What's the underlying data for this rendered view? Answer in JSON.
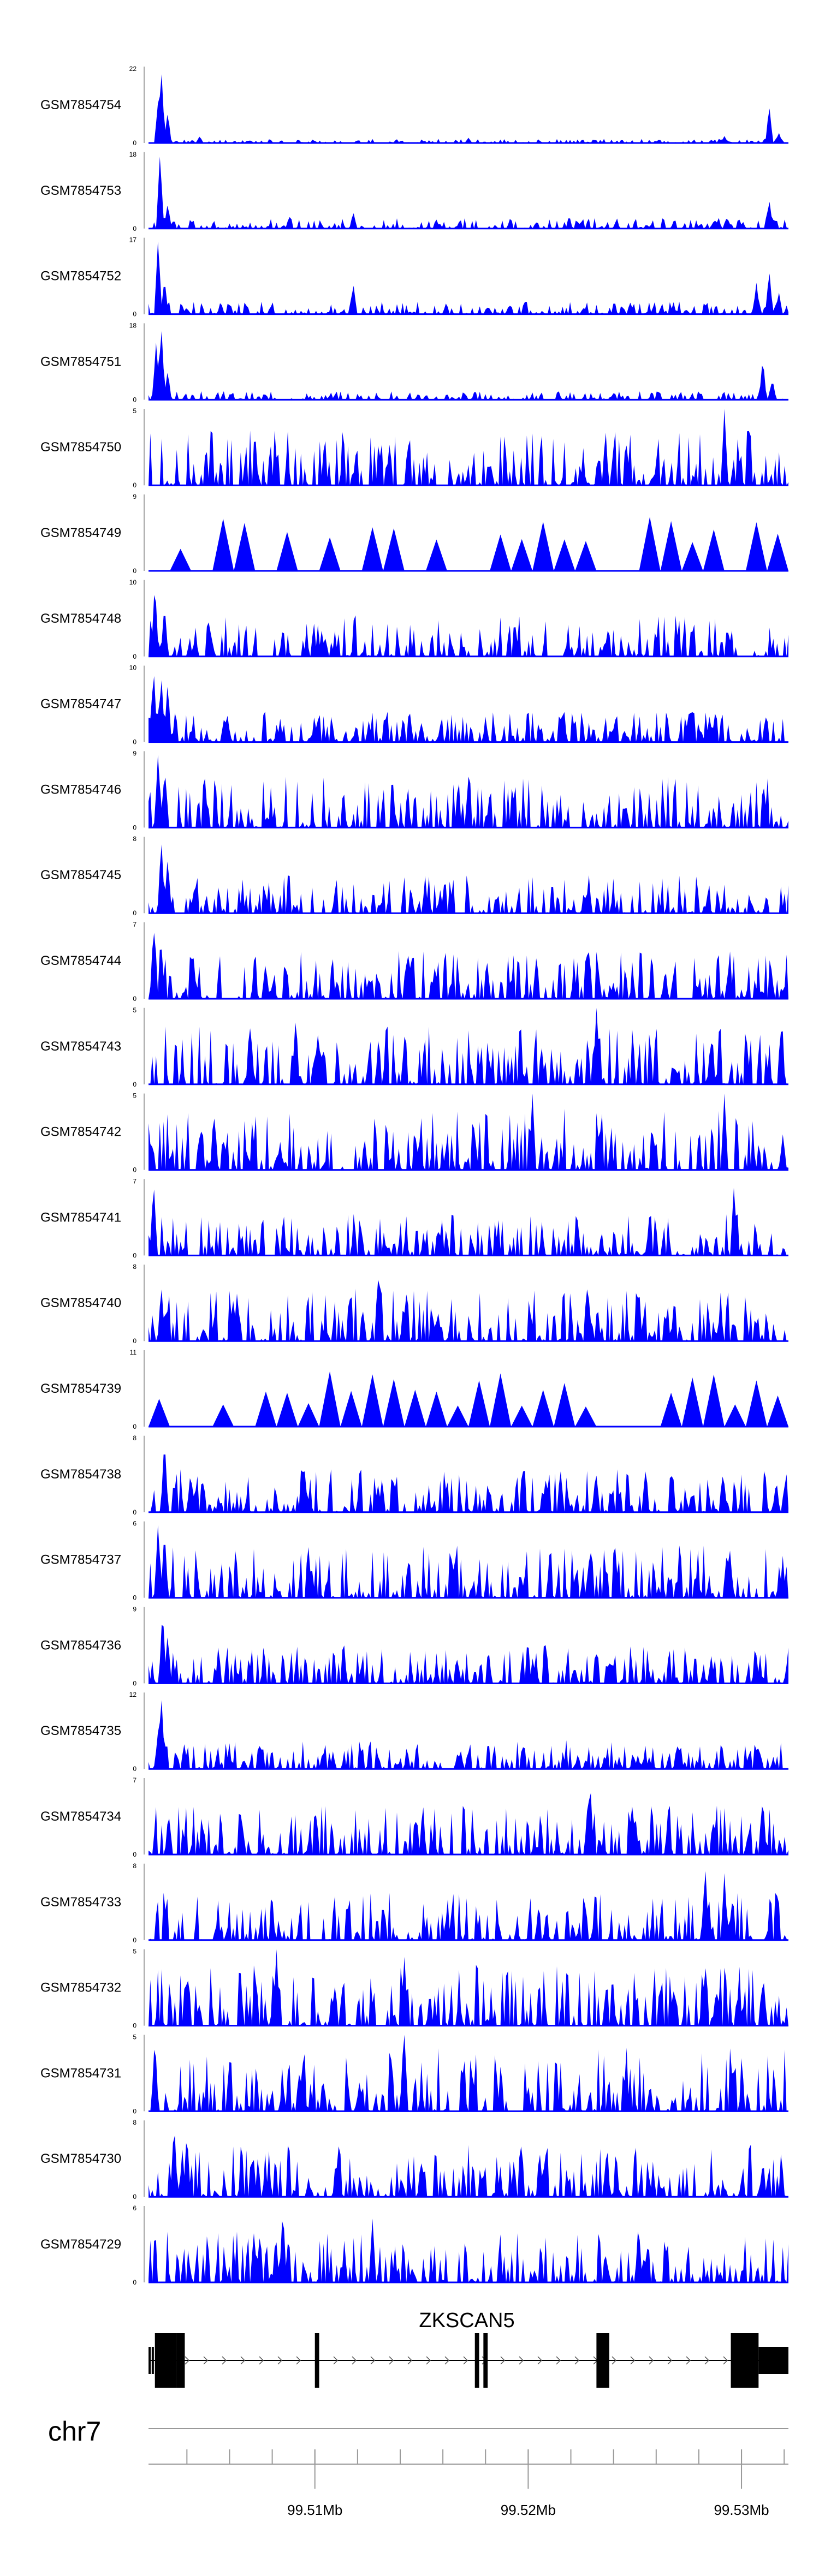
{
  "chart_data": {
    "type": "area",
    "chromosome": "chr7",
    "series_color": "#0000ff",
    "series": [
      {
        "name": "GSM7854754",
        "ymax": "22",
        "ymin": "0",
        "peaks": [
          [
            0.015,
            12
          ],
          [
            0.02,
            22
          ],
          [
            0.03,
            9
          ],
          [
            0.08,
            2
          ],
          [
            0.5,
            1.5
          ],
          [
            0.9,
            2
          ],
          [
            0.97,
            11
          ],
          [
            0.985,
            3
          ]
        ],
        "noise": 1.2,
        "seed": 11
      },
      {
        "name": "GSM7854753",
        "ymax": "18",
        "ymin": "0",
        "peaks": [
          [
            0.018,
            18
          ],
          [
            0.03,
            6
          ],
          [
            0.22,
            3
          ],
          [
            0.32,
            4
          ],
          [
            0.97,
            7
          ]
        ],
        "noise": 2.5,
        "seed": 12
      },
      {
        "name": "GSM7854752",
        "ymax": "17",
        "ymin": "0",
        "peaks": [
          [
            0.015,
            17
          ],
          [
            0.025,
            8
          ],
          [
            0.32,
            7
          ],
          [
            0.95,
            7
          ],
          [
            0.97,
            10
          ],
          [
            0.985,
            5
          ]
        ],
        "noise": 2.8,
        "seed": 13
      },
      {
        "name": "GSM7854751",
        "ymax": "18",
        "ymin": "0",
        "peaks": [
          [
            0.012,
            14
          ],
          [
            0.02,
            18
          ],
          [
            0.03,
            7
          ],
          [
            0.96,
            10
          ],
          [
            0.975,
            5
          ]
        ],
        "noise": 2.0,
        "seed": 14
      },
      {
        "name": "GSM7854750",
        "ymax": "5",
        "ymin": "0",
        "peaks": [
          [
            0.9,
            5
          ]
        ],
        "noise": 3.6,
        "seed": 15
      },
      {
        "name": "GSM7854749",
        "ymax": "9",
        "ymin": "0",
        "peaks": [
          [
            0.98,
            9
          ]
        ],
        "noise": 6.5,
        "seed": 16,
        "sparse": true
      },
      {
        "name": "GSM7854748",
        "ymax": "10",
        "ymin": "0",
        "peaks": [
          [
            0.01,
            10
          ],
          [
            0.025,
            7
          ]
        ],
        "noise": 5.5,
        "seed": 17
      },
      {
        "name": "GSM7854747",
        "ymax": "10",
        "ymin": "0",
        "peaks": [
          [
            0.008,
            10
          ],
          [
            0.02,
            9
          ],
          [
            0.03,
            8
          ]
        ],
        "noise": 4.0,
        "seed": 18
      },
      {
        "name": "GSM7854746",
        "ymax": "9",
        "ymin": "0",
        "peaks": [
          [
            0.015,
            9
          ],
          [
            0.5,
            6
          ]
        ],
        "noise": 6.0,
        "seed": 19
      },
      {
        "name": "GSM7854745",
        "ymax": "8",
        "ymin": "0",
        "peaks": [
          [
            0.02,
            8
          ],
          [
            0.03,
            6
          ]
        ],
        "noise": 4.0,
        "seed": 20
      },
      {
        "name": "GSM7854744",
        "ymax": "7",
        "ymin": "0",
        "peaks": [
          [
            0.008,
            7
          ],
          [
            0.02,
            5
          ]
        ],
        "noise": 4.5,
        "seed": 21
      },
      {
        "name": "GSM7854743",
        "ymax": "5",
        "ymin": "0",
        "peaks": [
          [
            0.7,
            5
          ],
          [
            0.23,
            4.5
          ]
        ],
        "noise": 3.8,
        "seed": 22
      },
      {
        "name": "GSM7854742",
        "ymax": "5",
        "ymin": "0",
        "peaks": [
          [
            0.6,
            5
          ],
          [
            0.9,
            5
          ]
        ],
        "noise": 4.0,
        "seed": 23
      },
      {
        "name": "GSM7854741",
        "ymax": "7",
        "ymin": "0",
        "peaks": [
          [
            0.008,
            7
          ],
          [
            0.915,
            6.5
          ]
        ],
        "noise": 3.8,
        "seed": 24
      },
      {
        "name": "GSM7854740",
        "ymax": "8",
        "ymin": "0",
        "peaks": [
          [
            0.36,
            8
          ],
          [
            0.02,
            6
          ]
        ],
        "noise": 5.5,
        "seed": 25
      },
      {
        "name": "GSM7854739",
        "ymax": "11",
        "ymin": "0",
        "peaks": [
          [
            0.64,
            11
          ],
          [
            0.99,
            11
          ]
        ],
        "noise": 8.0,
        "seed": 26,
        "sparse": true
      },
      {
        "name": "GSM7854738",
        "ymax": "8",
        "ymin": "0",
        "peaks": [
          [
            0.025,
            8
          ]
        ],
        "noise": 4.5,
        "seed": 27
      },
      {
        "name": "GSM7854737",
        "ymax": "6",
        "ymin": "0",
        "peaks": [
          [
            0.015,
            6
          ],
          [
            0.025,
            5.5
          ]
        ],
        "noise": 4.2,
        "seed": 28
      },
      {
        "name": "GSM7854736",
        "ymax": "9",
        "ymin": "0",
        "peaks": [
          [
            0.022,
            9
          ],
          [
            0.03,
            6
          ]
        ],
        "noise": 4.5,
        "seed": 29
      },
      {
        "name": "GSM7854735",
        "ymax": "12",
        "ymin": "0",
        "peaks": [
          [
            0.02,
            12
          ],
          [
            0.015,
            6
          ]
        ],
        "noise": 4.5,
        "seed": 30
      },
      {
        "name": "GSM7854734",
        "ymax": "7",
        "ymin": "0",
        "peaks": [
          [
            0.69,
            7
          ],
          [
            0.96,
            5.5
          ]
        ],
        "noise": 4.5,
        "seed": 31
      },
      {
        "name": "GSM7854733",
        "ymax": "8",
        "ymin": "0",
        "peaks": [
          [
            0.87,
            8
          ],
          [
            0.9,
            7
          ]
        ],
        "noise": 5.0,
        "seed": 32
      },
      {
        "name": "GSM7854732",
        "ymax": "5",
        "ymin": "0",
        "peaks": [
          [
            0.2,
            5
          ],
          [
            0.4,
            4.5
          ]
        ],
        "noise": 4.0,
        "seed": 33
      },
      {
        "name": "GSM7854731",
        "ymax": "5",
        "ymin": "0",
        "peaks": [
          [
            0.4,
            5
          ],
          [
            0.01,
            5
          ]
        ],
        "noise": 4.2,
        "seed": 34
      },
      {
        "name": "GSM7854730",
        "ymax": "8",
        "ymin": "0",
        "peaks": [
          [
            0.04,
            8
          ],
          [
            0.06,
            7
          ]
        ],
        "noise": 5.5,
        "seed": 35
      },
      {
        "name": "GSM7854729",
        "ymax": "6",
        "ymin": "0",
        "peaks": [
          [
            0.21,
            6
          ],
          [
            0.35,
            5
          ]
        ],
        "noise": 4.0,
        "seed": 36
      }
    ],
    "gene": {
      "name": "ZKSCAN5",
      "strand": "+",
      "start_mb": 99.5022,
      "end_mb": 99.5322,
      "exons": [
        {
          "start_mb": 99.5022,
          "end_mb": 99.50225,
          "kind": "utr"
        },
        {
          "start_mb": 99.50235,
          "end_mb": 99.5024,
          "kind": "utr"
        },
        {
          "start_mb": 99.5025,
          "end_mb": 99.5035,
          "kind": "cds"
        },
        {
          "start_mb": 99.5035,
          "end_mb": 99.5039,
          "kind": "cds"
        },
        {
          "start_mb": 99.51,
          "end_mb": 99.5102,
          "kind": "cds"
        },
        {
          "start_mb": 99.5175,
          "end_mb": 99.5177,
          "kind": "cds"
        },
        {
          "start_mb": 99.5179,
          "end_mb": 99.5181,
          "kind": "cds"
        },
        {
          "start_mb": 99.5232,
          "end_mb": 99.5238,
          "kind": "cds"
        },
        {
          "start_mb": 99.5295,
          "end_mb": 99.5308,
          "kind": "cds"
        },
        {
          "start_mb": 99.5308,
          "end_mb": 99.5322,
          "kind": "utr"
        }
      ]
    },
    "axis": {
      "xlim_mb": [
        99.5022,
        99.5322
      ],
      "ticks": [
        {
          "value": 99.51,
          "label": "99.51Mb"
        },
        {
          "value": 99.52,
          "label": "99.52Mb"
        },
        {
          "value": 99.53,
          "label": "99.53Mb"
        }
      ],
      "minor_step_mb": 0.002
    }
  }
}
